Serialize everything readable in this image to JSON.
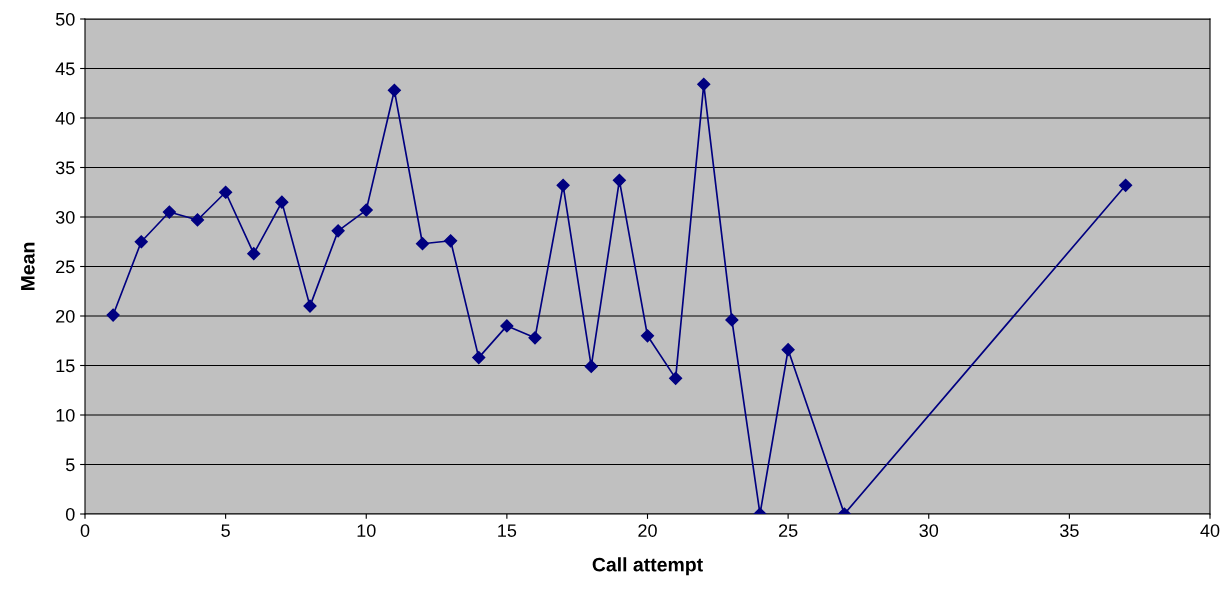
{
  "chart_data": {
    "type": "line",
    "xlabel": "Call attempt",
    "ylabel": "Mean",
    "x": [
      1,
      2,
      3,
      4,
      5,
      6,
      7,
      8,
      9,
      10,
      11,
      12,
      13,
      14,
      15,
      16,
      17,
      18,
      19,
      20,
      21,
      22,
      23,
      24,
      25,
      27,
      37
    ],
    "series": [
      {
        "color": "#000080",
        "values": [
          20.1,
          27.5,
          30.5,
          29.7,
          32.5,
          26.3,
          31.5,
          21.0,
          28.6,
          30.7,
          42.8,
          27.3,
          27.6,
          15.8,
          19.0,
          17.8,
          33.2,
          14.9,
          33.7,
          18.0,
          13.7,
          43.4,
          19.6,
          0,
          16.6,
          0,
          33.2
        ]
      }
    ],
    "xlim": [
      0,
      40
    ],
    "xticks": [
      0,
      5,
      10,
      15,
      20,
      25,
      30,
      35,
      40
    ],
    "ylim": [
      0,
      50
    ],
    "yticks": [
      0,
      5,
      10,
      15,
      20,
      25,
      30,
      35,
      40,
      45,
      50
    ],
    "grid": "y",
    "marker": "diamond",
    "line_style": "solid",
    "legend": false
  }
}
